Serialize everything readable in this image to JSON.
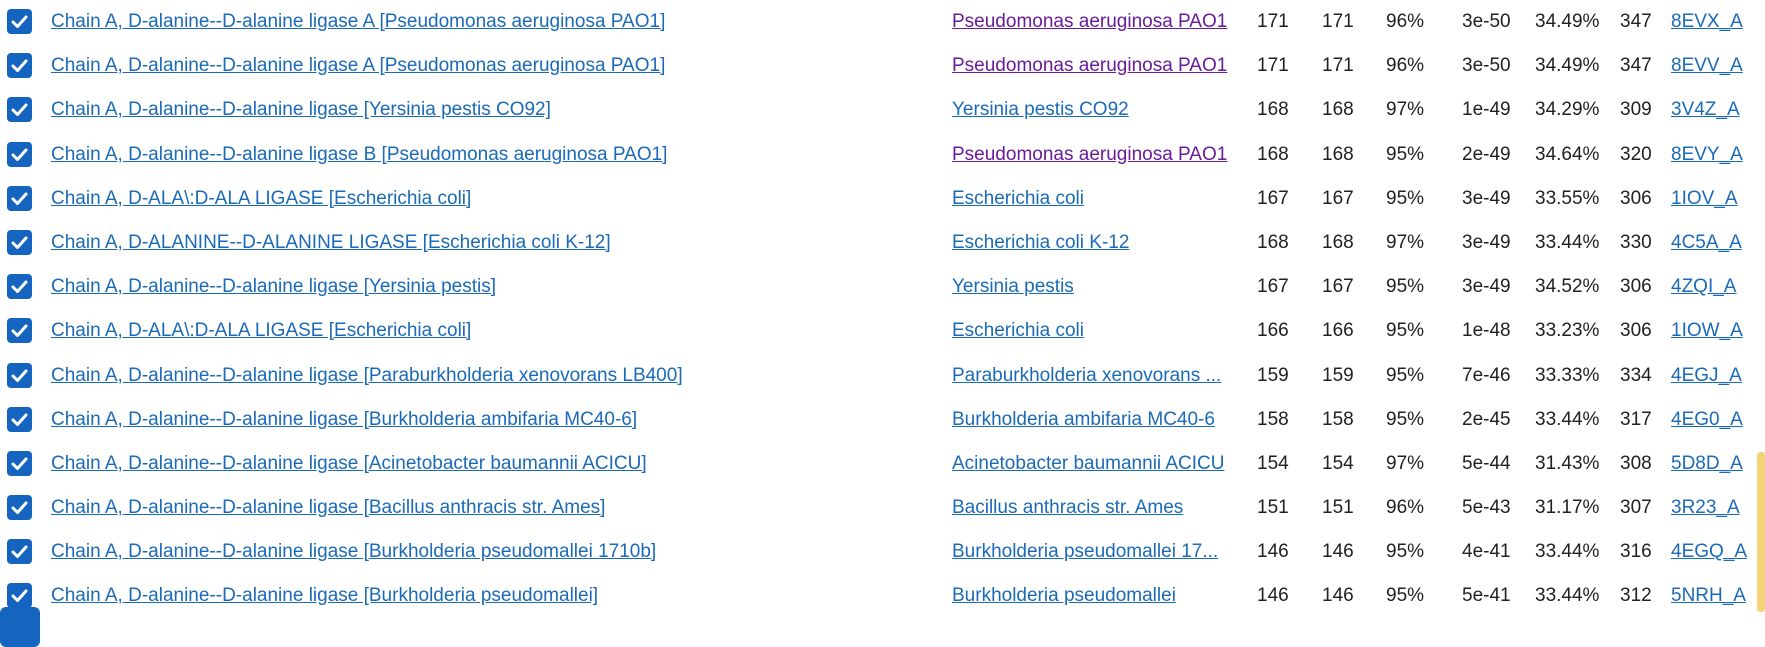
{
  "colors": {
    "link": "#1a6ab8",
    "visited": "#6a1b9a",
    "checkbox": "#1565c0"
  },
  "results": [
    {
      "checked": true,
      "description": "Chain A, D-alanine--D-alanine ligase A [Pseudomonas aeruginosa PAO1]",
      "organism": "Pseudomonas aeruginosa PAO1",
      "organism_visited": true,
      "max_score": "171",
      "total_score": "171",
      "query_cover": "96%",
      "evalue": "3e-50",
      "per_ident": "34.49%",
      "acc_len": "347",
      "accession": "8EVX_A"
    },
    {
      "checked": true,
      "description": "Chain A, D-alanine--D-alanine ligase A [Pseudomonas aeruginosa PAO1]",
      "organism": "Pseudomonas aeruginosa PAO1",
      "organism_visited": true,
      "max_score": "171",
      "total_score": "171",
      "query_cover": "96%",
      "evalue": "3e-50",
      "per_ident": "34.49%",
      "acc_len": "347",
      "accession": "8EVV_A"
    },
    {
      "checked": true,
      "description": "Chain A, D-alanine--D-alanine ligase [Yersinia pestis CO92]",
      "organism": "Yersinia pestis CO92",
      "organism_visited": false,
      "max_score": "168",
      "total_score": "168",
      "query_cover": "97%",
      "evalue": "1e-49",
      "per_ident": "34.29%",
      "acc_len": "309",
      "accession": "3V4Z_A"
    },
    {
      "checked": true,
      "description": "Chain A, D-alanine--D-alanine ligase B [Pseudomonas aeruginosa PAO1]",
      "organism": "Pseudomonas aeruginosa PAO1",
      "organism_visited": true,
      "max_score": "168",
      "total_score": "168",
      "query_cover": "95%",
      "evalue": "2e-49",
      "per_ident": "34.64%",
      "acc_len": "320",
      "accession": "8EVY_A"
    },
    {
      "checked": true,
      "description": "Chain A, D-ALA\\:D-ALA LIGASE [Escherichia coli]",
      "organism": "Escherichia coli",
      "organism_visited": false,
      "max_score": "167",
      "total_score": "167",
      "query_cover": "95%",
      "evalue": "3e-49",
      "per_ident": "33.55%",
      "acc_len": "306",
      "accession": "1IOV_A"
    },
    {
      "checked": true,
      "description": "Chain A, D-ALANINE--D-ALANINE LIGASE [Escherichia coli K-12]",
      "organism": "Escherichia coli K-12",
      "organism_visited": false,
      "max_score": "168",
      "total_score": "168",
      "query_cover": "97%",
      "evalue": "3e-49",
      "per_ident": "33.44%",
      "acc_len": "330",
      "accession": "4C5A_A"
    },
    {
      "checked": true,
      "description": "Chain A, D-alanine--D-alanine ligase [Yersinia pestis]",
      "organism": "Yersinia pestis",
      "organism_visited": false,
      "max_score": "167",
      "total_score": "167",
      "query_cover": "95%",
      "evalue": "3e-49",
      "per_ident": "34.52%",
      "acc_len": "306",
      "accession": "4ZQI_A"
    },
    {
      "checked": true,
      "description": "Chain A, D-ALA\\:D-ALA LIGASE [Escherichia coli]",
      "organism": "Escherichia coli",
      "organism_visited": false,
      "max_score": "166",
      "total_score": "166",
      "query_cover": "95%",
      "evalue": "1e-48",
      "per_ident": "33.23%",
      "acc_len": "306",
      "accession": "1IOW_A"
    },
    {
      "checked": true,
      "description": "Chain A, D-alanine--D-alanine ligase [Paraburkholderia xenovorans LB400]",
      "organism": "Paraburkholderia xenovorans ...",
      "organism_visited": false,
      "max_score": "159",
      "total_score": "159",
      "query_cover": "95%",
      "evalue": "7e-46",
      "per_ident": "33.33%",
      "acc_len": "334",
      "accession": "4EGJ_A"
    },
    {
      "checked": true,
      "description": "Chain A, D-alanine--D-alanine ligase [Burkholderia ambifaria MC40-6]",
      "organism": "Burkholderia ambifaria MC40-6",
      "organism_visited": false,
      "max_score": "158",
      "total_score": "158",
      "query_cover": "95%",
      "evalue": "2e-45",
      "per_ident": "33.44%",
      "acc_len": "317",
      "accession": "4EG0_A"
    },
    {
      "checked": true,
      "description": "Chain A, D-alanine--D-alanine ligase [Acinetobacter baumannii ACICU]",
      "organism": "Acinetobacter baumannii ACICU",
      "organism_visited": false,
      "max_score": "154",
      "total_score": "154",
      "query_cover": "97%",
      "evalue": "5e-44",
      "per_ident": "31.43%",
      "acc_len": "308",
      "accession": "5D8D_A"
    },
    {
      "checked": true,
      "description": "Chain A, D-alanine--D-alanine ligase [Bacillus anthracis str. Ames]",
      "organism": "Bacillus anthracis str. Ames",
      "organism_visited": false,
      "max_score": "151",
      "total_score": "151",
      "query_cover": "96%",
      "evalue": "5e-43",
      "per_ident": "31.17%",
      "acc_len": "307",
      "accession": "3R23_A"
    },
    {
      "checked": true,
      "description": "Chain A, D-alanine--D-alanine ligase [Burkholderia pseudomallei 1710b]",
      "organism": "Burkholderia pseudomallei 17...",
      "organism_visited": false,
      "max_score": "146",
      "total_score": "146",
      "query_cover": "95%",
      "evalue": "4e-41",
      "per_ident": "33.44%",
      "acc_len": "316",
      "accession": "4EGQ_A"
    },
    {
      "checked": true,
      "description": "Chain A, D-alanine--D-alanine ligase [Burkholderia pseudomallei]",
      "organism": "Burkholderia pseudomallei",
      "organism_visited": false,
      "max_score": "146",
      "total_score": "146",
      "query_cover": "95%",
      "evalue": "5e-41",
      "per_ident": "33.44%",
      "acc_len": "312",
      "accession": "5NRH_A"
    }
  ]
}
